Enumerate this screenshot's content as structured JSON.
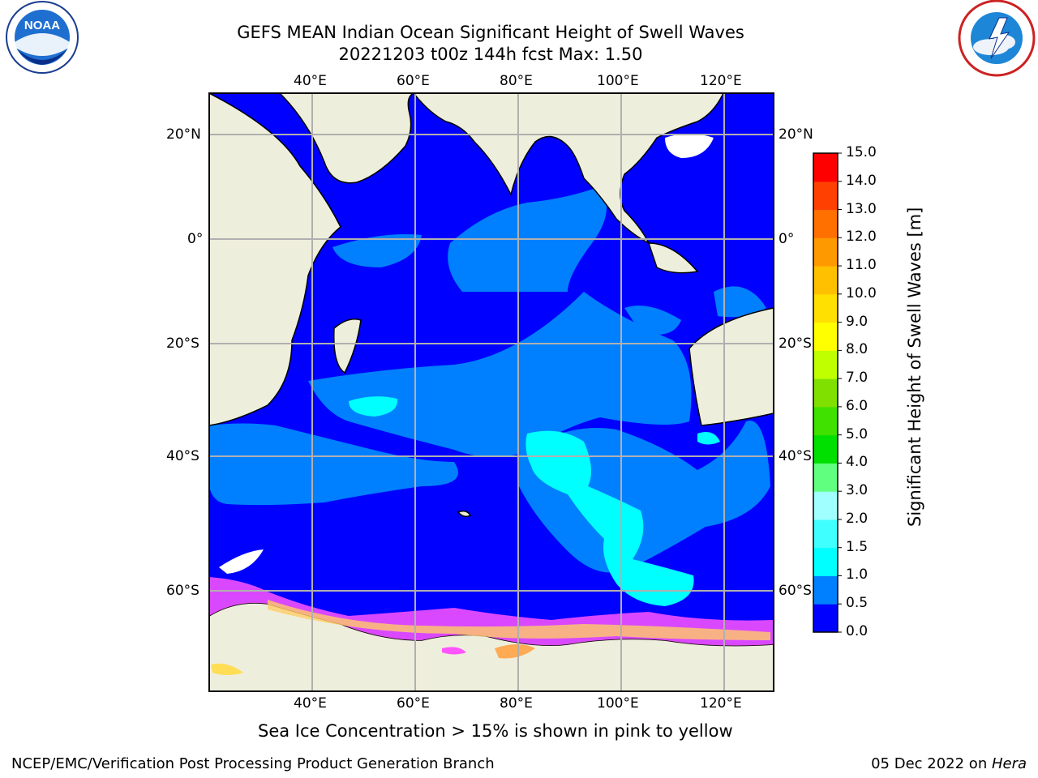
{
  "header": {
    "title_line1": "GEFS MEAN Indian Ocean Significant Height of Swell Waves",
    "title_line2": "20221203 t00z 144h fcst   Max: 1.50"
  },
  "logos": {
    "left": "NOAA",
    "left_ring": "NATIONAL OCEANIC AND ATMOSPHERIC ADMINISTRATION · U.S. DEPARTMENT OF COMMERCE",
    "right_ring": "NATIONAL WEATHER SERVICE"
  },
  "map": {
    "lon_labels_top": [
      "40°E",
      "60°E",
      "80°E",
      "100°E",
      "120°E"
    ],
    "lon_labels_bottom": [
      "40°E",
      "60°E",
      "80°E",
      "100°E",
      "120°E"
    ],
    "lat_labels_left": [
      "20°N",
      "0°",
      "20°S",
      "40°S",
      "60°S"
    ],
    "lat_labels_right": [
      "20°N",
      "0°",
      "20°S",
      "40°S",
      "60°S"
    ],
    "colors": {
      "land": "#eeeedc",
      "sea_ice": "#ff55ff",
      "grid": "#b0b0b0"
    }
  },
  "colorbar": {
    "title": "Significant Height of Swell Waves [m]",
    "ticks": [
      "0.0",
      "0.5",
      "1.0",
      "1.5",
      "2.0",
      "3.0",
      "4.0",
      "5.0",
      "6.0",
      "7.0",
      "8.0",
      "9.0",
      "10.0",
      "11.0",
      "12.0",
      "13.0",
      "14.0",
      "15.0"
    ],
    "colors": [
      "#0000ff",
      "#0080ff",
      "#00ffff",
      "#40ffff",
      "#a0ffff",
      "#60ff80",
      "#00e000",
      "#40e000",
      "#80e000",
      "#c0ff00",
      "#ffff00",
      "#ffe000",
      "#ffc000",
      "#ff9900",
      "#ff7000",
      "#ff4000",
      "#ff0000"
    ]
  },
  "subtitle": "Sea Ice Concentration > 15% is shown in pink to yellow",
  "footer": {
    "left": "NCEP/EMC/Verification Post Processing Product Generation Branch",
    "date": "05 Dec 2022 on ",
    "host": "Hera"
  }
}
